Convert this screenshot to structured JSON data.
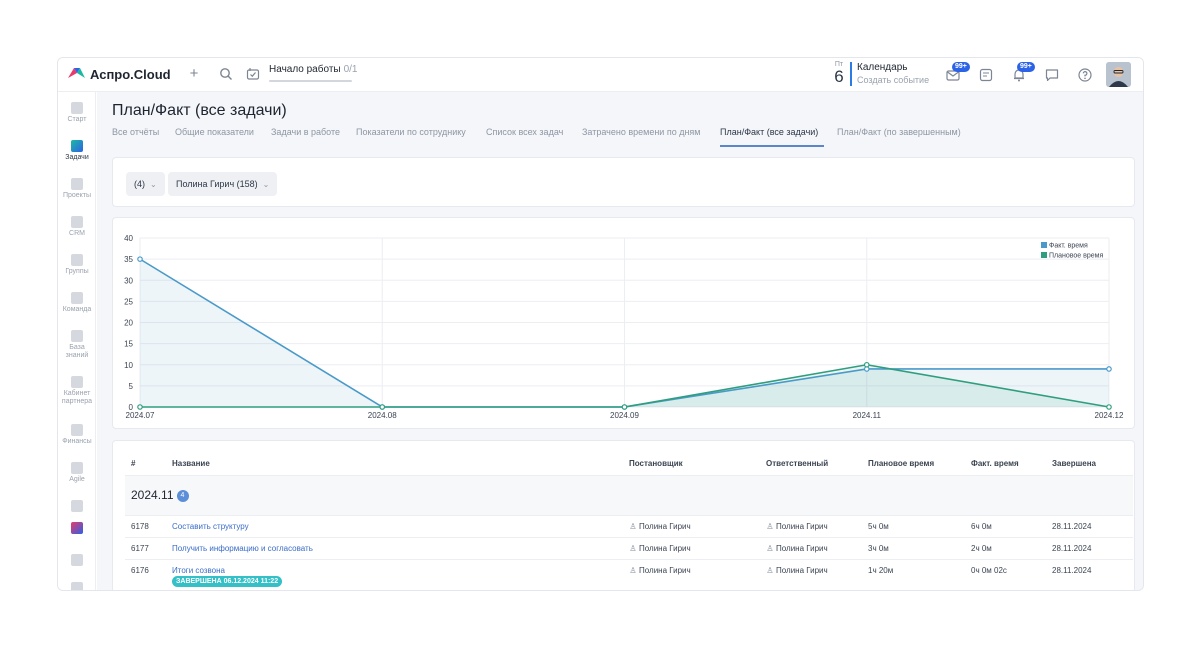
{
  "app": {
    "name": "Аспро.Cloud"
  },
  "topbar": {
    "start_work_label": "Начало работы",
    "start_work_count": "0/1",
    "calendar_weekday": "Пт",
    "calendar_day": "6",
    "calendar_title": "Календарь",
    "calendar_action": "Создать событие",
    "mail_badge": "99+",
    "notifications_badge": "99+"
  },
  "sidebar": {
    "items": [
      {
        "label": "Старт",
        "icon": "start-icon"
      },
      {
        "label": "Задачи",
        "icon": "tasks-icon",
        "active": true
      },
      {
        "label": "Проекты",
        "icon": "projects-icon"
      },
      {
        "label": "CRM",
        "icon": "crm-icon"
      },
      {
        "label": "Группы",
        "icon": "groups-icon"
      },
      {
        "label": "Команда",
        "icon": "team-icon"
      },
      {
        "label": "База знаний",
        "icon": "knowledge-base-icon"
      },
      {
        "label": "Кабинет партнера",
        "icon": "partner-cabinet-icon"
      },
      {
        "label": "Финансы",
        "icon": "finance-icon"
      },
      {
        "label": "Agile",
        "icon": "agile-icon"
      }
    ]
  },
  "page": {
    "title": "План/Факт (все задачи)",
    "tabs": [
      {
        "label": "Все отчёты"
      },
      {
        "label": "Общие показатели"
      },
      {
        "label": "Задачи в работе"
      },
      {
        "label": "Показатели по сотруднику"
      },
      {
        "label": "Список всех задач"
      },
      {
        "label": "Затрачено времени по дням"
      },
      {
        "label": "План/Факт (все задачи)",
        "active": true
      },
      {
        "label": "План/Факт (по завершенным)"
      }
    ]
  },
  "filters": {
    "period_label": "(4)",
    "employee_label": "Полина Гирич (158)"
  },
  "chart_data": {
    "type": "area",
    "categories": [
      "2024.07",
      "2024.08",
      "2024.09",
      "2024.11",
      "2024.12"
    ],
    "series": [
      {
        "name": "Факт. время",
        "color": "#4a9ac9",
        "values": [
          35,
          0,
          0,
          9,
          9
        ]
      },
      {
        "name": "Плановое время",
        "color": "#2f9e7f",
        "values": [
          0,
          0,
          0,
          10,
          0
        ]
      }
    ],
    "ylim": [
      0,
      40
    ],
    "yticks": [
      0,
      5,
      10,
      15,
      20,
      25,
      30,
      35,
      40
    ],
    "legend": "top-right",
    "grid": true
  },
  "table": {
    "columns": [
      "#",
      "Название",
      "Постановщик",
      "Ответственный",
      "Плановое время",
      "Факт. время",
      "Завершена"
    ],
    "group": {
      "title": "2024.11",
      "count": "4"
    },
    "rows": [
      {
        "id": "6178",
        "name": "Составить структуру",
        "author": "Полина Гирич",
        "responsible": "Полина Гирич",
        "plan": "5ч 0м",
        "fact": "6ч 0м",
        "done": "28.11.2024"
      },
      {
        "id": "6177",
        "name": "Получить информацию и согласовать",
        "author": "Полина Гирич",
        "responsible": "Полина Гирич",
        "plan": "3ч 0м",
        "fact": "2ч 0м",
        "done": "28.11.2024"
      },
      {
        "id": "6176",
        "name": "Итоги созвона",
        "author": "Полина Гирич",
        "responsible": "Полина Гирич",
        "plan": "1ч 20м",
        "fact": "0ч 0м 02с",
        "done": "28.11.2024",
        "status_badge": "ЗАВЕРШЕНА 06.12.2024 11:22"
      }
    ]
  }
}
